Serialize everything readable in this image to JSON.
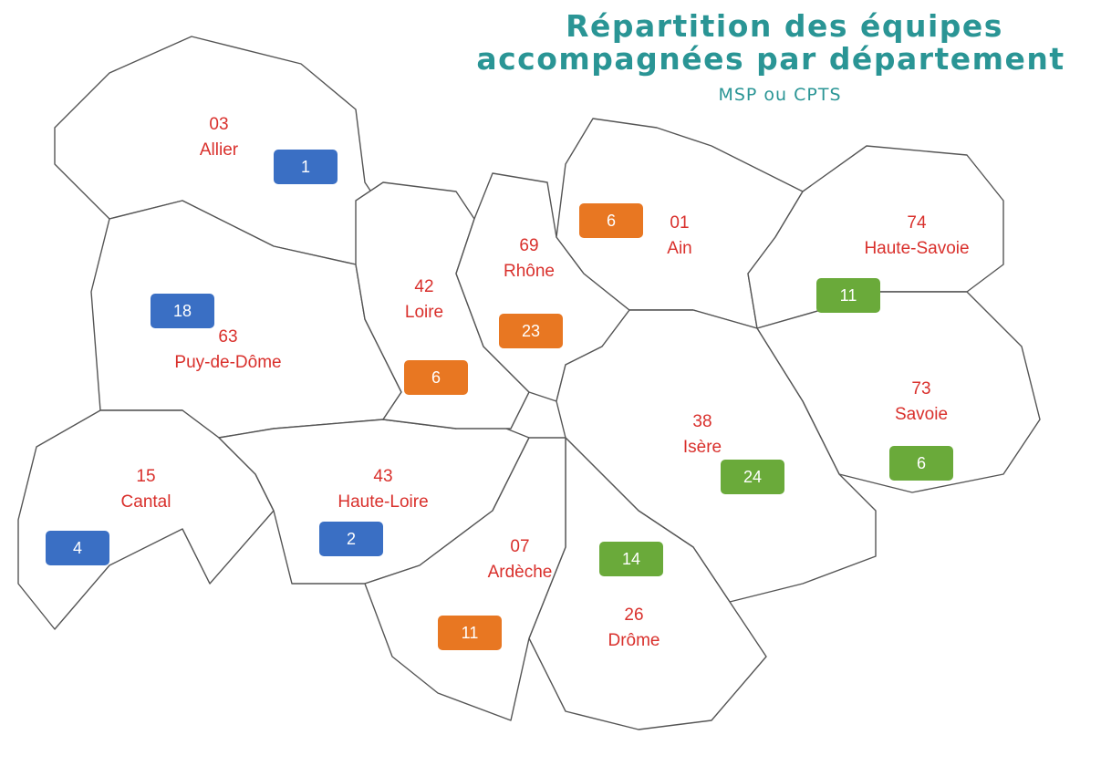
{
  "header": {
    "title_lines": [
      "Répartition des équipes",
      "accompagnées par département"
    ],
    "subtitle": "MSP ou CPTS"
  },
  "departments": [
    {
      "code": "03",
      "name": "Allier",
      "count": 1,
      "color": "#3a6fc4"
    },
    {
      "code": "63",
      "name": "Puy-de-Dôme",
      "count": 18,
      "color": "#3a6fc4"
    },
    {
      "code": "15",
      "name": "Cantal",
      "count": 4,
      "color": "#3a6fc4"
    },
    {
      "code": "43",
      "name": "Haute-Loire",
      "count": 2,
      "color": "#3a6fc4"
    },
    {
      "code": "42",
      "name": "Loire",
      "count": 6,
      "color": "#e87722"
    },
    {
      "code": "69",
      "name": "Rhône",
      "count": 23,
      "color": "#e87722"
    },
    {
      "code": "01",
      "name": "Ain",
      "count": 6,
      "color": "#e87722"
    },
    {
      "code": "07",
      "name": "Ardèche",
      "count": 11,
      "color": "#e87722"
    },
    {
      "code": "74",
      "name": "Haute-Savoie",
      "count": 11,
      "color": "#6aaa3a"
    },
    {
      "code": "73",
      "name": "Savoie",
      "count": 6,
      "color": "#6aaa3a"
    },
    {
      "code": "38",
      "name": "Isère",
      "count": 24,
      "color": "#6aaa3a"
    },
    {
      "code": "26",
      "name": "Drôme",
      "count": 14,
      "color": "#6aaa3a"
    }
  ]
}
